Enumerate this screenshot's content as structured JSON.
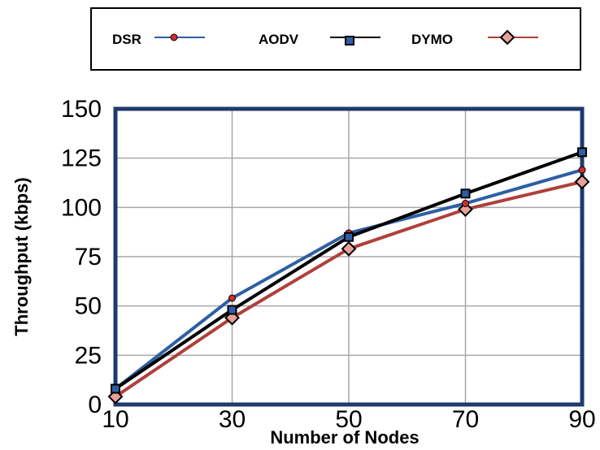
{
  "chart_data": {
    "type": "line",
    "title": "",
    "xlabel": "Number of Nodes",
    "ylabel": "Throughput (kbps)",
    "x": [
      10,
      30,
      50,
      70,
      90
    ],
    "xlim": [
      10,
      90
    ],
    "ylim": [
      0,
      150
    ],
    "xticks": [
      "10",
      "30",
      "50",
      "70",
      "90"
    ],
    "yticks": [
      "0",
      "25",
      "50",
      "75",
      "100",
      "125",
      "150"
    ],
    "grid": true,
    "legend": "top-boxed",
    "series": [
      {
        "name": "DSR",
        "values": [
          8,
          54,
          87,
          102,
          119
        ],
        "color": "#2e5fa3",
        "marker": "circle",
        "marker_color": "#d62b2b"
      },
      {
        "name": "AODV",
        "values": [
          8,
          48,
          85,
          107,
          128
        ],
        "color": "#000000",
        "marker": "square",
        "marker_color": "#2e5fa3"
      },
      {
        "name": "DYMO",
        "values": [
          4,
          44,
          79,
          99,
          113
        ],
        "color": "#b0403a",
        "marker": "diamond",
        "marker_color": "#e8a09a"
      }
    ]
  }
}
